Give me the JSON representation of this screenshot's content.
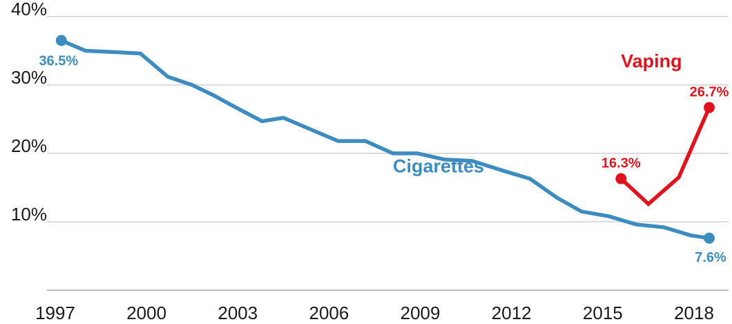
{
  "chart_data": {
    "type": "line",
    "x_ticks": [
      "1997",
      "2000",
      "2003",
      "2006",
      "2009",
      "2012",
      "2015",
      "2018"
    ],
    "y_ticks": [
      "10%",
      "20%",
      "30%",
      "40%"
    ],
    "xlim": [
      1997,
      2018.7
    ],
    "ylim": [
      0,
      40
    ],
    "grid": true,
    "series": [
      {
        "name": "Cigarettes",
        "color": "#3c8cc0",
        "x": [
          1997.2,
          1998,
          1999,
          1999.8,
          2000.7,
          2001.5,
          2002.2,
          2002.9,
          2003.8,
          2004.5,
          2005.4,
          2006.3,
          2007.2,
          2008.1,
          2008.9,
          2009.8,
          2010.7,
          2011.7,
          2012.6,
          2013.5,
          2014.3,
          2015.2,
          2016.1,
          2017,
          2017.9,
          2018.5
        ],
        "values": [
          36.5,
          35.0,
          34.8,
          34.6,
          31.2,
          30.0,
          28.5,
          26.8,
          24.7,
          25.2,
          23.5,
          21.8,
          21.8,
          20.0,
          20.0,
          19.1,
          18.9,
          17.5,
          16.3,
          13.5,
          11.5,
          10.8,
          9.6,
          9.2,
          8.0,
          7.6
        ],
        "labels": [
          {
            "index": 0,
            "text": "36.5%",
            "anchor": "below-right"
          },
          {
            "index": 25,
            "text": "7.6%",
            "anchor": "below"
          }
        ],
        "markers_at": [
          0,
          25
        ],
        "series_label": {
          "text": "Cigarettes",
          "x": 2009.6,
          "y": 17.2
        }
      },
      {
        "name": "Vaping",
        "color": "#e0141e",
        "x": [
          2015.6,
          2016.5,
          2017.5,
          2018.5
        ],
        "values": [
          16.3,
          12.6,
          16.5,
          26.7
        ],
        "labels": [
          {
            "index": 0,
            "text": "16.3%",
            "anchor": "above"
          },
          {
            "index": 3,
            "text": "26.7%",
            "anchor": "above"
          }
        ],
        "markers_at": [
          0,
          3
        ],
        "series_label": {
          "text": "Vaping",
          "x": 2016.6,
          "y": 32.6
        }
      }
    ]
  }
}
